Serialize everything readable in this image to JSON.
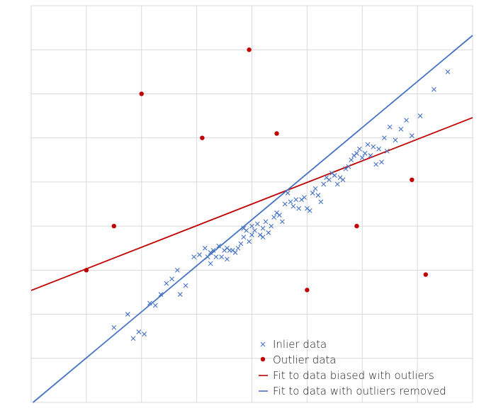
{
  "chart_data": {
    "type": "scatter",
    "title": "",
    "xlabel": "",
    "ylabel": "",
    "xlim": [
      0,
      8
    ],
    "ylim": [
      0,
      9
    ],
    "grid": true,
    "legend_position": "bottom-right",
    "legend": [
      {
        "label": "Inlier data",
        "marker": "x",
        "color": "#4472c4"
      },
      {
        "label": "Outlier data",
        "marker": "dot",
        "color": "#c00000"
      },
      {
        "label": "Fit to data biased with outliers",
        "marker": "line",
        "color": "#c00000"
      },
      {
        "label": "Fit to data with outliers removed",
        "marker": "line",
        "color": "#4472c4"
      }
    ],
    "inliers": {
      "name": "Inlier data",
      "color": "#4472c4",
      "points": [
        [
          1.5,
          1.7
        ],
        [
          1.75,
          2.0
        ],
        [
          1.85,
          1.45
        ],
        [
          1.95,
          1.6
        ],
        [
          2.05,
          1.55
        ],
        [
          2.15,
          2.25
        ],
        [
          2.25,
          2.2
        ],
        [
          2.35,
          2.45
        ],
        [
          2.45,
          2.7
        ],
        [
          2.55,
          2.8
        ],
        [
          2.65,
          3.0
        ],
        [
          2.7,
          2.45
        ],
        [
          2.8,
          2.65
        ],
        [
          2.95,
          3.3
        ],
        [
          3.05,
          3.35
        ],
        [
          3.15,
          3.5
        ],
        [
          3.2,
          3.3
        ],
        [
          3.25,
          3.15
        ],
        [
          3.25,
          3.4
        ],
        [
          3.3,
          3.45
        ],
        [
          3.35,
          3.3
        ],
        [
          3.4,
          3.55
        ],
        [
          3.45,
          3.3
        ],
        [
          3.5,
          3.45
        ],
        [
          3.55,
          3.25
        ],
        [
          3.55,
          3.5
        ],
        [
          3.6,
          3.45
        ],
        [
          3.65,
          3.45
        ],
        [
          3.7,
          3.4
        ],
        [
          3.75,
          3.5
        ],
        [
          3.8,
          3.6
        ],
        [
          3.85,
          3.75
        ],
        [
          3.85,
          3.95
        ],
        [
          3.9,
          3.9
        ],
        [
          3.95,
          3.65
        ],
        [
          4.0,
          3.8
        ],
        [
          4.0,
          4.0
        ],
        [
          4.05,
          3.9
        ],
        [
          4.1,
          4.05
        ],
        [
          4.15,
          3.8
        ],
        [
          4.2,
          3.75
        ],
        [
          4.2,
          3.95
        ],
        [
          4.25,
          4.1
        ],
        [
          4.3,
          3.85
        ],
        [
          4.35,
          4.0
        ],
        [
          4.4,
          4.2
        ],
        [
          4.45,
          4.3
        ],
        [
          4.5,
          4.25
        ],
        [
          4.55,
          4.1
        ],
        [
          4.6,
          4.5
        ],
        [
          4.65,
          4.75
        ],
        [
          4.7,
          4.55
        ],
        [
          4.75,
          4.45
        ],
        [
          4.8,
          4.6
        ],
        [
          4.85,
          4.4
        ],
        [
          4.9,
          4.6
        ],
        [
          4.95,
          4.65
        ],
        [
          5.0,
          4.4
        ],
        [
          5.05,
          4.35
        ],
        [
          5.1,
          4.75
        ],
        [
          5.15,
          4.85
        ],
        [
          5.2,
          4.7
        ],
        [
          5.25,
          4.55
        ],
        [
          5.3,
          4.95
        ],
        [
          5.35,
          5.1
        ],
        [
          5.4,
          5.05
        ],
        [
          5.45,
          5.2
        ],
        [
          5.5,
          5.15
        ],
        [
          5.55,
          4.95
        ],
        [
          5.6,
          5.1
        ],
        [
          5.65,
          5.05
        ],
        [
          5.7,
          5.3
        ],
        [
          5.75,
          5.35
        ],
        [
          5.8,
          5.5
        ],
        [
          5.85,
          5.6
        ],
        [
          5.9,
          5.65
        ],
        [
          5.95,
          5.75
        ],
        [
          6.0,
          5.55
        ],
        [
          6.05,
          5.65
        ],
        [
          6.1,
          5.85
        ],
        [
          6.15,
          5.6
        ],
        [
          6.2,
          5.8
        ],
        [
          6.25,
          5.4
        ],
        [
          6.3,
          5.75
        ],
        [
          6.35,
          5.45
        ],
        [
          6.4,
          6.0
        ],
        [
          6.45,
          5.7
        ],
        [
          6.5,
          6.25
        ],
        [
          6.6,
          5.95
        ],
        [
          6.7,
          6.2
        ],
        [
          6.8,
          6.4
        ],
        [
          6.9,
          6.05
        ],
        [
          7.05,
          6.5
        ],
        [
          7.3,
          7.1
        ],
        [
          7.55,
          7.5
        ]
      ]
    },
    "outliers": {
      "name": "Outlier data",
      "color": "#c00000",
      "points": [
        [
          1.0,
          3.0
        ],
        [
          1.5,
          4.0
        ],
        [
          2.0,
          7.0
        ],
        [
          3.1,
          6.0
        ],
        [
          3.95,
          8.0
        ],
        [
          4.45,
          6.1
        ],
        [
          5.0,
          2.55
        ],
        [
          5.9,
          4.0
        ],
        [
          6.9,
          5.05
        ],
        [
          7.15,
          2.9
        ]
      ]
    },
    "fits": [
      {
        "name": "Fit to data biased with outliers",
        "color": "#c00000",
        "slope": 0.49,
        "intercept": 2.54
      },
      {
        "name": "Fit to data with outliers removed",
        "color": "#4472c4",
        "slope": 1.045,
        "intercept": -0.035
      }
    ]
  }
}
